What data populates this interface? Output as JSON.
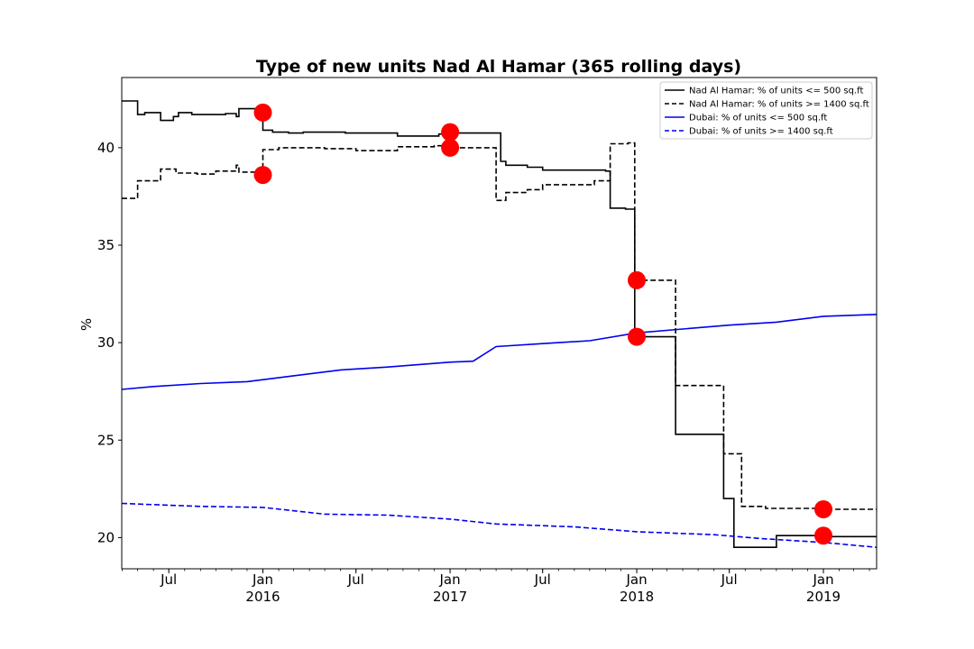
{
  "chart_data": {
    "type": "line",
    "title": "Type of new units Nad Al Hamar (365 rolling days)",
    "xlabel": "",
    "ylabel": "%",
    "xlim": [
      "2015-03-31",
      "2019-04-15"
    ],
    "ylim": [
      18.4,
      43.6
    ],
    "yticks": [
      20,
      25,
      30,
      35,
      40
    ],
    "xticks": [
      {
        "date": "2015-07-01",
        "label": "Jul",
        "sublabel": ""
      },
      {
        "date": "2016-01-01",
        "label": "Jan",
        "sublabel": "2016"
      },
      {
        "date": "2016-07-01",
        "label": "Jul",
        "sublabel": ""
      },
      {
        "date": "2017-01-01",
        "label": "Jan",
        "sublabel": "2017"
      },
      {
        "date": "2017-07-01",
        "label": "Jul",
        "sublabel": ""
      },
      {
        "date": "2018-01-01",
        "label": "Jan",
        "sublabel": "2018"
      },
      {
        "date": "2018-07-01",
        "label": "Jul",
        "sublabel": ""
      },
      {
        "date": "2019-01-01",
        "label": "Jan",
        "sublabel": "2019"
      }
    ],
    "grid": false,
    "legend_position": "top-right",
    "series": [
      {
        "name": "Nad Al Hamar: % of units <= 500 sq.ft",
        "color": "#000000",
        "style": "solid",
        "step": true,
        "points": [
          [
            "2015-03-31",
            42.4
          ],
          [
            "2015-04-12",
            42.4
          ],
          [
            "2015-05-01",
            41.7
          ],
          [
            "2015-05-15",
            41.8
          ],
          [
            "2015-06-01",
            41.8
          ],
          [
            "2015-06-15",
            41.4
          ],
          [
            "2015-07-10",
            41.6
          ],
          [
            "2015-07-20",
            41.8
          ],
          [
            "2015-08-15",
            41.7
          ],
          [
            "2015-09-20",
            41.7
          ],
          [
            "2015-10-20",
            41.75
          ],
          [
            "2015-11-10",
            41.6
          ],
          [
            "2015-11-15",
            42.0
          ],
          [
            "2016-01-01",
            40.9
          ],
          [
            "2016-01-20",
            40.8
          ],
          [
            "2016-02-20",
            40.75
          ],
          [
            "2016-03-20",
            40.8
          ],
          [
            "2016-06-10",
            40.75
          ],
          [
            "2016-09-20",
            40.6
          ],
          [
            "2016-12-10",
            40.7
          ],
          [
            "2017-01-01",
            40.75
          ],
          [
            "2017-04-10",
            39.3
          ],
          [
            "2017-04-20",
            39.1
          ],
          [
            "2017-06-01",
            39.0
          ],
          [
            "2017-07-01",
            38.85
          ],
          [
            "2017-11-01",
            38.8
          ],
          [
            "2017-11-10",
            36.9
          ],
          [
            "2017-12-10",
            36.85
          ],
          [
            "2017-12-28",
            30.3
          ],
          [
            "2018-03-15",
            30.3
          ],
          [
            "2018-03-18",
            25.3
          ],
          [
            "2018-06-20",
            22.0
          ],
          [
            "2018-07-10",
            19.5
          ],
          [
            "2018-10-01",
            20.1
          ],
          [
            "2019-01-15",
            20.05
          ],
          [
            "2019-04-15",
            20.05
          ]
        ]
      },
      {
        "name": "Nad Al Hamar: % of units >= 1400 sq.ft",
        "color": "#000000",
        "style": "dashed",
        "step": true,
        "points": [
          [
            "2015-03-31",
            37.4
          ],
          [
            "2015-05-01",
            38.3
          ],
          [
            "2015-06-15",
            38.9
          ],
          [
            "2015-07-15",
            38.7
          ],
          [
            "2015-08-25",
            38.65
          ],
          [
            "2015-10-01",
            38.8
          ],
          [
            "2015-11-10",
            39.1
          ],
          [
            "2015-11-15",
            38.75
          ],
          [
            "2016-01-01",
            39.9
          ],
          [
            "2016-02-01",
            40.0
          ],
          [
            "2016-05-01",
            39.95
          ],
          [
            "2016-07-01",
            39.85
          ],
          [
            "2016-09-20",
            40.05
          ],
          [
            "2016-12-01",
            40.1
          ],
          [
            "2016-12-20",
            40.0
          ],
          [
            "2017-04-01",
            37.3
          ],
          [
            "2017-04-20",
            37.7
          ],
          [
            "2017-06-01",
            37.85
          ],
          [
            "2017-07-01",
            38.1
          ],
          [
            "2017-10-10",
            38.3
          ],
          [
            "2017-11-10",
            40.2
          ],
          [
            "2017-12-15",
            40.25
          ],
          [
            "2017-12-28",
            33.2
          ],
          [
            "2018-03-18",
            27.8
          ],
          [
            "2018-06-20",
            24.3
          ],
          [
            "2018-07-25",
            21.6
          ],
          [
            "2018-09-10",
            21.5
          ],
          [
            "2019-01-10",
            21.45
          ],
          [
            "2019-04-15",
            21.45
          ]
        ]
      },
      {
        "name": "Dubai: % of units <= 500 sq.ft",
        "color": "#0000ee",
        "style": "solid",
        "step": false,
        "points": [
          [
            "2015-03-31",
            27.6
          ],
          [
            "2015-06-01",
            27.75
          ],
          [
            "2015-09-01",
            27.9
          ],
          [
            "2015-12-01",
            28.0
          ],
          [
            "2016-03-01",
            28.3
          ],
          [
            "2016-06-01",
            28.6
          ],
          [
            "2016-09-01",
            28.75
          ],
          [
            "2016-12-31",
            29.0
          ],
          [
            "2017-02-15",
            29.05
          ],
          [
            "2017-04-01",
            29.8
          ],
          [
            "2017-07-01",
            29.95
          ],
          [
            "2017-10-01",
            30.1
          ],
          [
            "2018-01-01",
            30.5
          ],
          [
            "2018-04-01",
            30.7
          ],
          [
            "2018-07-01",
            30.9
          ],
          [
            "2018-10-01",
            31.05
          ],
          [
            "2019-01-01",
            31.35
          ],
          [
            "2019-04-15",
            31.45
          ]
        ]
      },
      {
        "name": "Dubai: % of units >= 1400 sq.ft",
        "color": "#0000ee",
        "style": "dashed",
        "step": false,
        "points": [
          [
            "2015-03-31",
            21.75
          ],
          [
            "2015-09-01",
            21.6
          ],
          [
            "2016-01-01",
            21.55
          ],
          [
            "2016-05-01",
            21.2
          ],
          [
            "2016-09-01",
            21.15
          ],
          [
            "2017-01-01",
            20.95
          ],
          [
            "2017-04-01",
            20.7
          ],
          [
            "2017-09-01",
            20.55
          ],
          [
            "2018-01-01",
            20.3
          ],
          [
            "2018-06-01",
            20.15
          ],
          [
            "2018-09-01",
            19.95
          ],
          [
            "2019-01-01",
            19.75
          ],
          [
            "2019-04-15",
            19.5
          ]
        ]
      }
    ],
    "markers": {
      "color": "#ff0000",
      "points": [
        [
          "2016-01-01",
          41.8
        ],
        [
          "2016-01-01",
          38.6
        ],
        [
          "2017-01-01",
          40.8
        ],
        [
          "2017-01-01",
          40.0
        ],
        [
          "2018-01-01",
          33.2
        ],
        [
          "2018-01-01",
          30.3
        ],
        [
          "2019-01-01",
          21.45
        ],
        [
          "2019-01-01",
          20.1
        ]
      ]
    }
  }
}
